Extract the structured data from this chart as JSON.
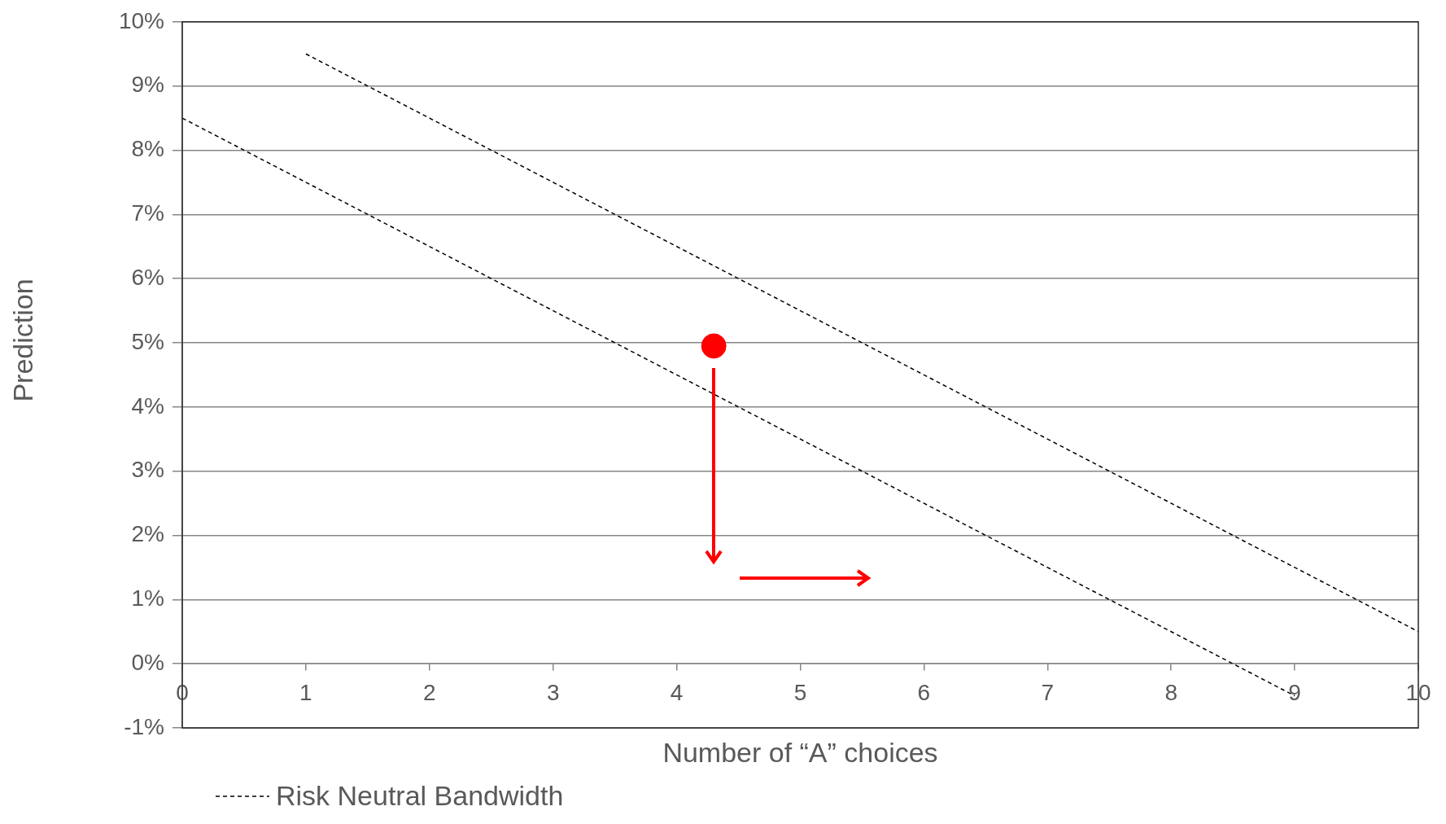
{
  "chart_data": {
    "type": "line",
    "xlabel": "Number of “A” choices",
    "ylabel": "Prediction",
    "xlim": [
      0,
      10
    ],
    "xticks": [
      0,
      1,
      2,
      3,
      4,
      5,
      6,
      7,
      8,
      9,
      10
    ],
    "ylim": [
      -1,
      10
    ],
    "yticks": [
      {
        "value": -1,
        "label": "-1%"
      },
      {
        "value": 0,
        "label": "0%"
      },
      {
        "value": 1,
        "label": "1%"
      },
      {
        "value": 2,
        "label": "2%"
      },
      {
        "value": 3,
        "label": "3%"
      },
      {
        "value": 4,
        "label": "4%"
      },
      {
        "value": 5,
        "label": "5%"
      },
      {
        "value": 6,
        "label": "6%"
      },
      {
        "value": 7,
        "label": "7%"
      },
      {
        "value": 8,
        "label": "8%"
      },
      {
        "value": 9,
        "label": "9%"
      },
      {
        "value": 10,
        "label": "10%"
      }
    ],
    "grid": "y",
    "legend": "bottom left",
    "line_style": "dashed",
    "marker": "none",
    "series": [
      {
        "name": "Risk Neutral Bandwidth",
        "color": "#000000",
        "x": [
          0,
          9
        ],
        "values": [
          8.5,
          -0.5
        ]
      },
      {
        "color": "#000000",
        "x": [
          1,
          10
        ],
        "values": [
          9.5,
          0.5
        ]
      },
      {
        "type": "scatter",
        "marker": "circle",
        "color": "#ff0000",
        "x": [
          4.3
        ],
        "values": [
          4.95
        ]
      }
    ]
  }
}
